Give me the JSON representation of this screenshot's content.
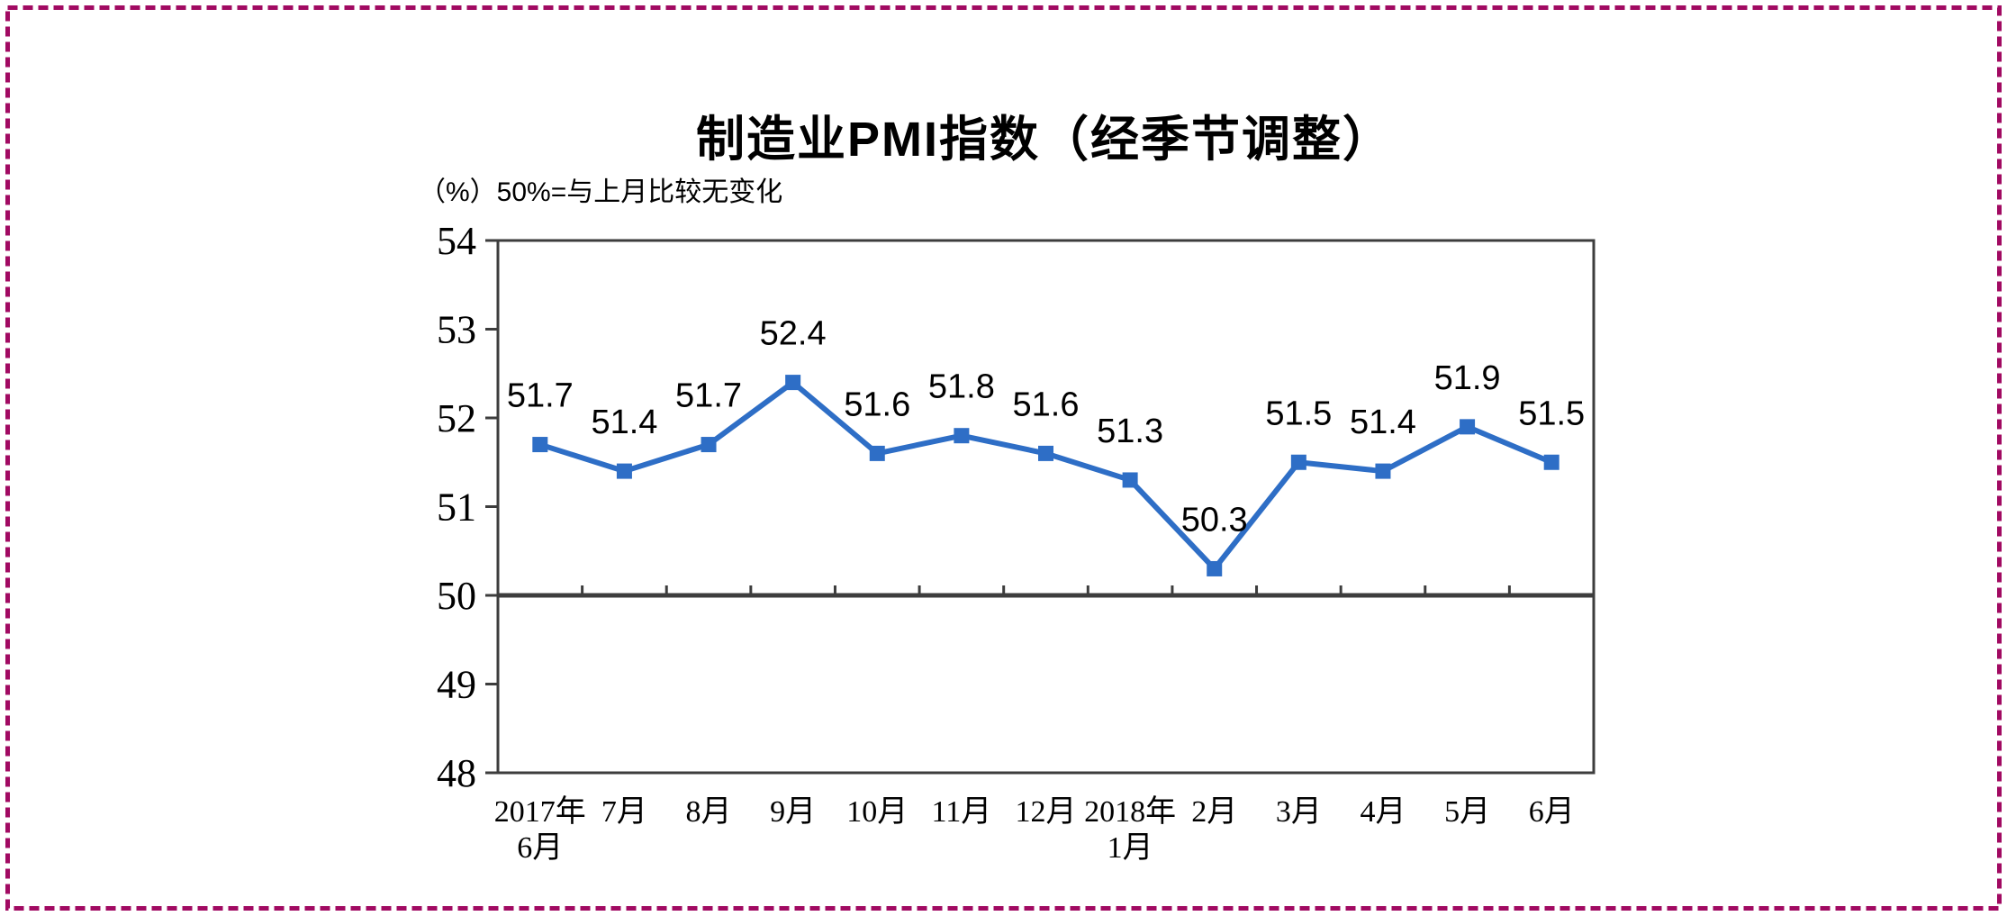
{
  "frame": {
    "border_color": "#A10A62",
    "background": "#FFFFFF"
  },
  "chart_data": {
    "type": "line",
    "title": "制造业PMI指数（经季节调整）",
    "unit_note": "（%）50%=与上月比较无变化",
    "xlabel": "",
    "ylabel": "",
    "categories": [
      "2017年\n6月",
      "7月",
      "8月",
      "9月",
      "10月",
      "11月",
      "12月",
      "2018年\n1月",
      "2月",
      "3月",
      "4月",
      "5月",
      "6月"
    ],
    "series": [
      {
        "name": "制造业PMI指数",
        "values": [
          51.7,
          51.4,
          51.7,
          52.4,
          51.6,
          51.8,
          51.6,
          51.3,
          50.3,
          51.5,
          51.4,
          51.9,
          51.5
        ]
      }
    ],
    "data_labels": [
      "51.7",
      "51.4",
      "51.7",
      "52.4",
      "51.6",
      "51.8",
      "51.6",
      "51.3",
      "50.3",
      "51.5",
      "51.4",
      "51.9",
      "51.5"
    ],
    "ylim": [
      48,
      54
    ],
    "yticks": [
      54,
      53,
      52,
      51,
      50,
      49,
      48
    ],
    "baseline_value": 50,
    "grid": false,
    "legend_position": "none",
    "line_color": "#2E6EC6",
    "marker": "square",
    "axis_color": "#3D3D3D",
    "text_color": "#000000"
  }
}
